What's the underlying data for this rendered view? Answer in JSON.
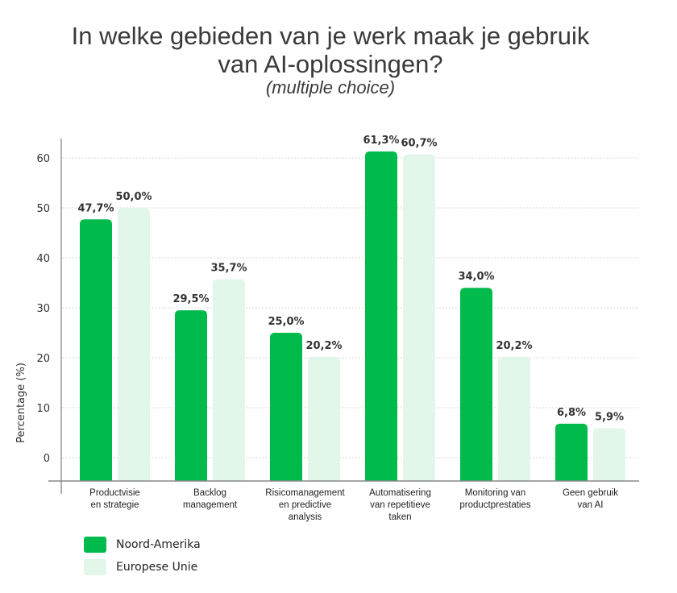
{
  "title_line1": "In welke gebieden van je werk maak je gebruik",
  "title_line2": "van AI-oplossingen?",
  "subtitle": "(multiple choice)",
  "chart_data": {
    "type": "bar",
    "title": "In welke gebieden van je werk maak je gebruik van AI-oplossingen? (multiple choice)",
    "xlabel": "",
    "ylabel": "Percentage (%)",
    "ylim": [
      0,
      60
    ],
    "yticks": [
      0,
      10,
      20,
      30,
      40,
      50,
      60
    ],
    "grid": true,
    "legend_position": "bottom-left",
    "categories": [
      [
        "Productvisie",
        "en strategie"
      ],
      [
        "Backlog",
        "management"
      ],
      [
        "Risicomanagement",
        "en predictive",
        "analysis"
      ],
      [
        "Automatisering",
        "van repetitieve",
        "taken"
      ],
      [
        "Monitoring van",
        "productprestaties"
      ],
      [
        "Geen gebruik",
        "van AI"
      ]
    ],
    "series": [
      {
        "name": "Noord-Amerika",
        "color": "#00bb4c",
        "values": [
          47.7,
          29.5,
          25.0,
          61.3,
          34.0,
          6.8
        ],
        "labels": [
          "47,7%",
          "29,5%",
          "25,0%",
          "61,3%",
          "34,0%",
          "6,8%"
        ]
      },
      {
        "name": "Europese Unie",
        "color": "#e2f6e9",
        "values": [
          50.0,
          35.7,
          20.2,
          60.7,
          20.2,
          5.9
        ],
        "labels": [
          "50,0%",
          "35,7%",
          "20,2%",
          "60,7%",
          "20,2%",
          "5,9%"
        ]
      }
    ]
  }
}
